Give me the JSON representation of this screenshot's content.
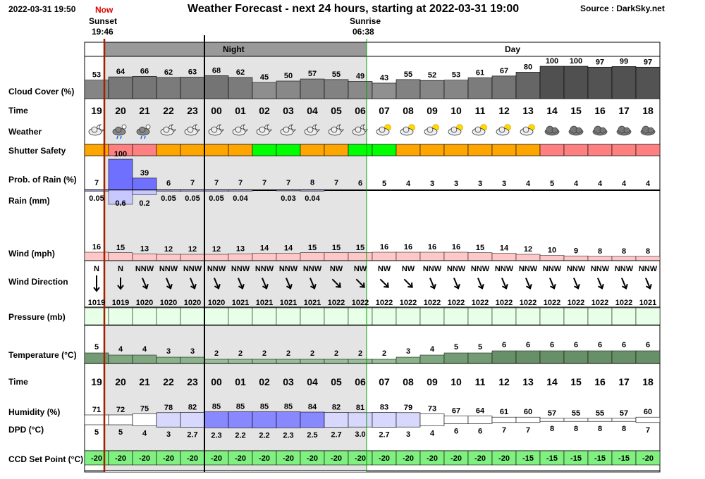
{
  "header": {
    "timestamp": "2022-03-31 19:50",
    "now": "Now",
    "title": "Weather Forecast - next 24 hours, starting at 2022-03-31 19:00",
    "source": "Source : DarkSky.net",
    "sunset_label": "Sunset",
    "sunset_time": "19:46",
    "sunrise_label": "Sunrise",
    "sunrise_time": "06:38",
    "night_label": "Night",
    "day_label": "Day"
  },
  "row_labels": {
    "cloud": "Cloud Cover (%)",
    "time": "Time",
    "weather": "Weather",
    "shutter": "Shutter Safety",
    "rain_prob": "Prob. of Rain (%)",
    "rain_mm": "Rain (mm)",
    "wind": "Wind (mph)",
    "wind_dir": "Wind Direction",
    "pressure": "Pressure (mb)",
    "temperature": "Temperature (°C)",
    "time2": "Time",
    "humidity": "Humidity (%)",
    "dpd": "DPD (°C)",
    "ccd": "CCD Set Point (°C)"
  },
  "colors": {
    "night_shade": "#e4e4e4",
    "shutter_unsafe": "#ff8080",
    "shutter_caution": "#ffa500",
    "shutter_safe": "#00ff00",
    "rain_prob_bar": "#7070ff",
    "rain_mm_bar": "#c8c8ff",
    "wind_bar": "#ffc8c8",
    "pressure_cell": "#e8ffe8",
    "ccd_cell": "#80f080",
    "sunset_line": "#a02000",
    "sunrise_line": "#00a000"
  },
  "chart_data": {
    "type": "table",
    "hours": [
      "19",
      "20",
      "21",
      "22",
      "23",
      "00",
      "01",
      "02",
      "03",
      "04",
      "05",
      "06",
      "07",
      "08",
      "09",
      "10",
      "11",
      "12",
      "13",
      "14",
      "15",
      "16",
      "17",
      "18"
    ],
    "cloud_cover": [
      53,
      64,
      66,
      62,
      63,
      68,
      62,
      45,
      50,
      57,
      55,
      49,
      43,
      55,
      52,
      53,
      61,
      67,
      80,
      100,
      100,
      97,
      99,
      97
    ],
    "weather_icons": [
      "partly-cloudy-night-icon",
      "rain-icon",
      "rain-icon",
      "partly-cloudy-night-icon",
      "partly-cloudy-night-icon",
      "partly-cloudy-night-icon",
      "partly-cloudy-night-icon",
      "partly-cloudy-night-icon",
      "partly-cloudy-night-icon",
      "partly-cloudy-night-icon",
      "partly-cloudy-night-icon",
      "partly-cloudy-night-icon",
      "partly-cloudy-day-icon",
      "partly-cloudy-day-icon",
      "partly-cloudy-day-icon",
      "partly-cloudy-day-icon",
      "partly-cloudy-day-icon",
      "partly-cloudy-day-icon",
      "partly-cloudy-day-icon",
      "cloudy-icon",
      "cloudy-icon",
      "cloudy-icon",
      "cloudy-icon",
      "cloudy-icon"
    ],
    "shutter_safety": [
      "caution",
      "unsafe",
      "unsafe",
      "caution",
      "caution",
      "caution",
      "caution",
      "safe",
      "safe",
      "caution",
      "caution",
      "safe",
      "safe",
      "caution",
      "caution",
      "caution",
      "caution",
      "caution",
      "caution",
      "unsafe",
      "unsafe",
      "unsafe",
      "unsafe",
      "unsafe"
    ],
    "rain_probability": [
      7,
      100,
      39,
      6,
      7,
      7,
      7,
      7,
      7,
      8,
      7,
      6,
      5,
      4,
      3,
      3,
      3,
      3,
      4,
      5,
      4,
      4,
      4,
      4
    ],
    "rain_mm": [
      "0.05",
      "0.6",
      "0.2",
      "0.05",
      "0.05",
      "0.05",
      "0.04",
      "",
      "0.03",
      "0.04",
      "",
      "",
      "",
      "",
      "",
      "",
      "",
      "",
      "",
      "",
      "",
      "",
      "",
      ""
    ],
    "rain_mm_values": [
      0.05,
      0.6,
      0.2,
      0.05,
      0.05,
      0.05,
      0.04,
      0,
      0.03,
      0.04,
      0,
      0,
      0,
      0,
      0,
      0,
      0,
      0,
      0,
      0,
      0,
      0,
      0,
      0
    ],
    "wind_mph": [
      16,
      15,
      13,
      12,
      12,
      12,
      13,
      14,
      14,
      15,
      15,
      15,
      16,
      16,
      16,
      16,
      15,
      14,
      12,
      10,
      9,
      8,
      8,
      8
    ],
    "wind_direction": [
      "N",
      "N",
      "NNW",
      "NNW",
      "NNW",
      "NNW",
      "NNW",
      "NNW",
      "NNW",
      "NNW",
      "NW",
      "NW",
      "NW",
      "NW",
      "NNW",
      "NNW",
      "NNW",
      "NNW",
      "NNW",
      "NNW",
      "NNW",
      "NNW",
      "NNW",
      "NNW"
    ],
    "wind_bearing_deg": [
      0,
      0,
      337.5,
      337.5,
      337.5,
      337.5,
      337.5,
      337.5,
      337.5,
      337.5,
      315,
      315,
      315,
      315,
      337.5,
      337.5,
      337.5,
      337.5,
      337.5,
      337.5,
      337.5,
      337.5,
      337.5,
      337.5
    ],
    "pressure_mb": [
      1019,
      1019,
      1020,
      1020,
      1020,
      1020,
      1021,
      1021,
      1021,
      1021,
      1022,
      1022,
      1022,
      1022,
      1022,
      1022,
      1022,
      1022,
      1022,
      1022,
      1022,
      1022,
      1022,
      1021
    ],
    "temperature_c": [
      5,
      4,
      4,
      3,
      3,
      2,
      2,
      2,
      2,
      2,
      2,
      2,
      2,
      3,
      4,
      5,
      5,
      6,
      6,
      6,
      6,
      6,
      6,
      6
    ],
    "humidity_pct": [
      71,
      72,
      75,
      78,
      82,
      85,
      85,
      85,
      85,
      84,
      82,
      81,
      83,
      79,
      73,
      67,
      64,
      61,
      60,
      57,
      55,
      55,
      57,
      60
    ],
    "dpd_c": [
      "5",
      "5",
      "4",
      "3",
      "2.7",
      "2.3",
      "2.2",
      "2.2",
      "2.3",
      "2.5",
      "2.7",
      "3.0",
      "2.7",
      "3",
      "4",
      "6",
      "6",
      "7",
      "7",
      "8",
      "8",
      "8",
      "8",
      "7"
    ],
    "dpd_values": [
      5,
      5,
      4,
      3,
      2.7,
      2.3,
      2.2,
      2.2,
      2.3,
      2.5,
      2.7,
      3.0,
      2.7,
      3,
      4,
      6,
      6,
      7,
      7,
      8,
      8,
      8,
      8,
      7
    ],
    "ccd_set_point_c": [
      -20,
      -20,
      -20,
      -20,
      -20,
      -20,
      -20,
      -20,
      -20,
      -20,
      -20,
      -20,
      -20,
      -20,
      -20,
      -20,
      -20,
      -20,
      -15,
      -15,
      -15,
      -15,
      -15,
      -20
    ]
  }
}
